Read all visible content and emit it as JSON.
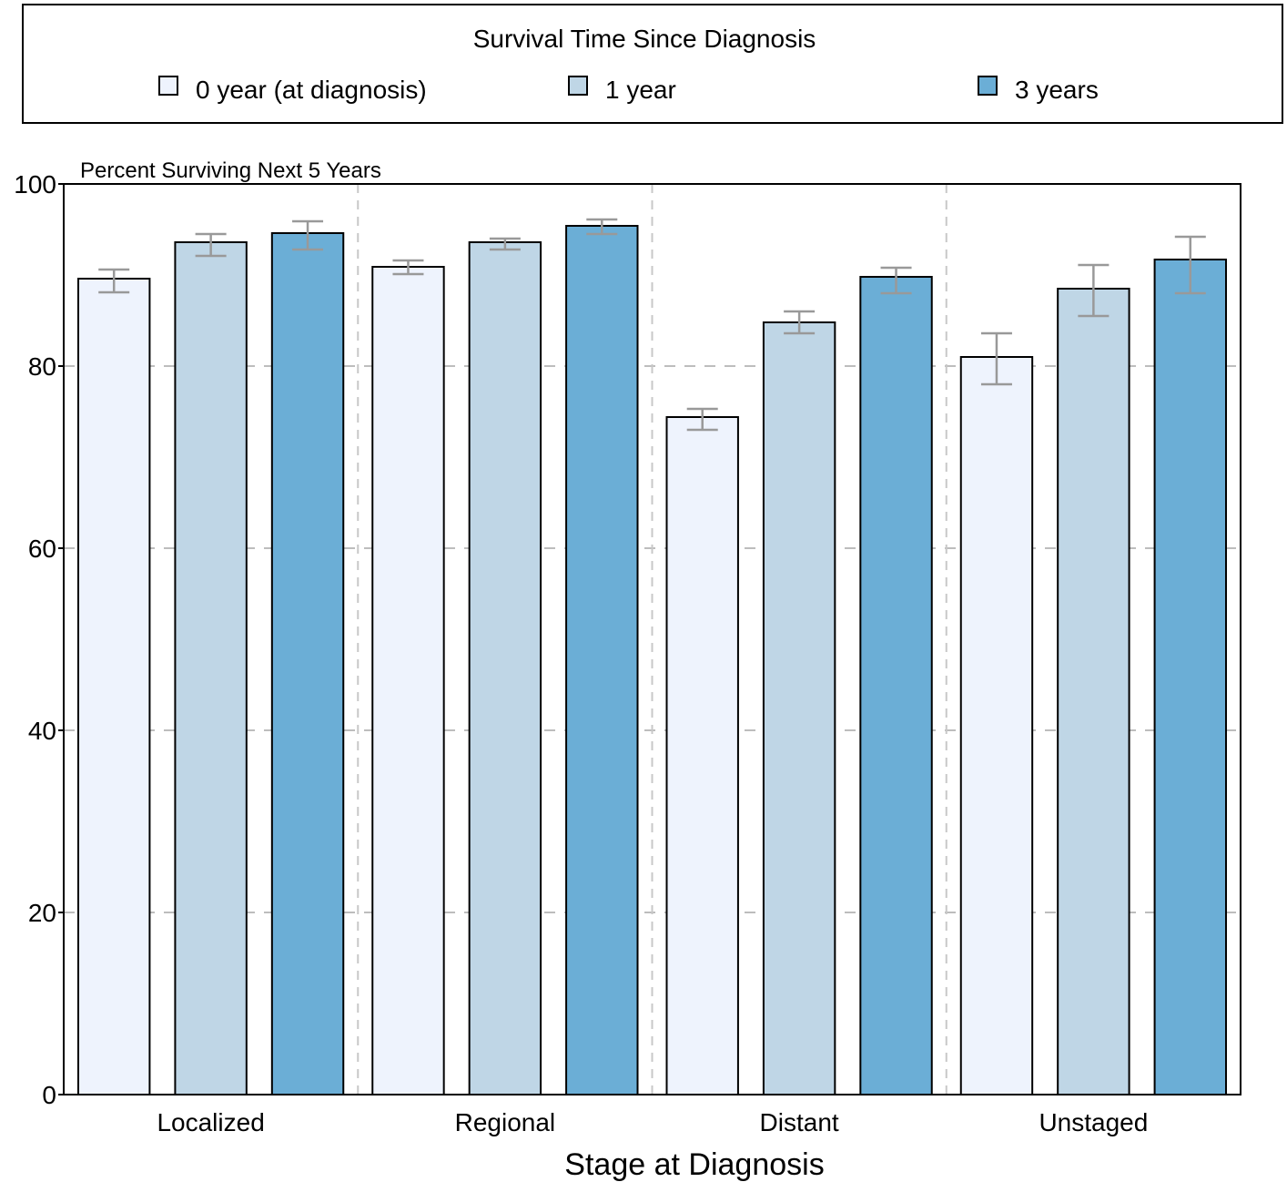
{
  "chart_data": {
    "type": "bar",
    "legend_title": "Survival Time Since Diagnosis",
    "legend_position": "top",
    "ylabel": "Percent Surviving Next 5 Years",
    "xlabel": "Stage at Diagnosis",
    "ylim": [
      0,
      100
    ],
    "yticks": [
      0,
      20,
      40,
      60,
      80,
      100
    ],
    "grid": true,
    "categories": [
      "Localized",
      "Regional",
      "Distant",
      "Unstaged"
    ],
    "series": [
      {
        "name": "0 year (at diagnosis)",
        "color": "#eef3fd",
        "values": [
          89.6,
          90.9,
          74.4,
          81.0
        ],
        "ci_low": [
          88.1,
          90.1,
          73.0,
          78.0
        ],
        "ci_high": [
          90.6,
          91.6,
          75.3,
          83.6
        ]
      },
      {
        "name": "1 year",
        "color": "#bfd6e6",
        "values": [
          93.6,
          93.6,
          84.8,
          88.5
        ],
        "ci_low": [
          92.1,
          92.8,
          83.6,
          85.5
        ],
        "ci_high": [
          94.5,
          94.0,
          86.0,
          91.1
        ]
      },
      {
        "name": "3 years",
        "color": "#6baed6",
        "values": [
          94.6,
          95.4,
          89.8,
          91.7
        ],
        "ci_low": [
          92.8,
          94.5,
          88.0,
          88.0
        ],
        "ci_high": [
          95.9,
          96.1,
          90.8,
          94.2
        ]
      }
    ]
  }
}
